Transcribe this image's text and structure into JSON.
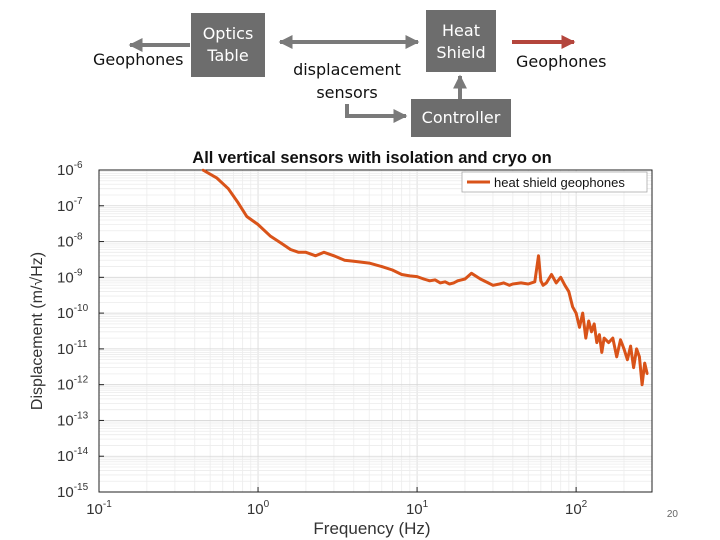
{
  "diagram": {
    "optics_table": [
      "Optics",
      "Table"
    ],
    "geophones_left": "Geophones",
    "displacement_sensors": [
      "displacement",
      "sensors"
    ],
    "heat_shield": [
      "Heat",
      "Shield"
    ],
    "geophones_right": "Geophones",
    "controller": "Controller",
    "colors": {
      "box": "#6d6d6d",
      "arrow_gray": "#7a7a7a",
      "arrow_red": "#b4453c"
    }
  },
  "slide_number": "20",
  "chart_data": {
    "type": "line",
    "title": "All vertical sensors with isolation and cryo on",
    "xlabel": "Frequency (Hz)",
    "ylabel": "Displacement (m/√Hz)",
    "xscale": "log",
    "yscale": "log",
    "xlim": [
      0.1,
      300
    ],
    "ylim": [
      1e-15,
      1e-06
    ],
    "x_ticks": [
      {
        "value": 0.1,
        "base": "10",
        "exp": "-1"
      },
      {
        "value": 1,
        "base": "10",
        "exp": "0"
      },
      {
        "value": 10,
        "base": "10",
        "exp": "1"
      },
      {
        "value": 100,
        "base": "10",
        "exp": "2"
      }
    ],
    "y_ticks": [
      {
        "value": 1e-06,
        "base": "10",
        "exp": "-6"
      },
      {
        "value": 1e-07,
        "base": "10",
        "exp": "-7"
      },
      {
        "value": 1e-08,
        "base": "10",
        "exp": "-8"
      },
      {
        "value": 1e-09,
        "base": "10",
        "exp": "-9"
      },
      {
        "value": 1e-10,
        "base": "10",
        "exp": "-10"
      },
      {
        "value": 1e-11,
        "base": "10",
        "exp": "-11"
      },
      {
        "value": 1e-12,
        "base": "10",
        "exp": "-12"
      },
      {
        "value": 1e-13,
        "base": "10",
        "exp": "-13"
      },
      {
        "value": 1e-14,
        "base": "10",
        "exp": "-14"
      },
      {
        "value": 1e-15,
        "base": "10",
        "exp": "-15"
      }
    ],
    "grid": true,
    "legend_position": "top-right",
    "series": [
      {
        "name": "heat shield geophones",
        "color": "#d95319",
        "x": [
          0.45,
          0.55,
          0.65,
          0.75,
          0.85,
          1.0,
          1.2,
          1.4,
          1.6,
          1.8,
          2.0,
          2.3,
          2.6,
          3.0,
          3.5,
          4.0,
          5.0,
          6.0,
          7.0,
          8.0,
          9.0,
          10.0,
          11,
          12,
          13,
          14,
          15,
          16,
          17,
          18,
          20,
          22,
          25,
          28,
          30,
          33,
          35,
          38,
          40,
          45,
          50,
          55,
          58,
          60,
          62,
          65,
          70,
          75,
          80,
          85,
          90,
          95,
          100,
          105,
          110,
          115,
          120,
          125,
          130,
          135,
          140,
          145,
          150,
          160,
          170,
          180,
          190,
          200,
          210,
          220,
          230,
          240,
          250,
          260,
          270,
          280
        ],
        "y": [
          1e-06,
          6e-07,
          3e-07,
          1.2e-07,
          5e-08,
          3e-08,
          1.4e-08,
          9e-09,
          6e-09,
          5e-09,
          5e-09,
          4e-09,
          5e-09,
          4e-09,
          3e-09,
          2.8e-09,
          2.5e-09,
          2e-09,
          1.6e-09,
          1.2e-09,
          1.1e-09,
          1.05e-09,
          9e-10,
          8e-10,
          8.5e-10,
          7e-10,
          7.5e-10,
          6.5e-10,
          7e-10,
          8e-10,
          9e-10,
          1.3e-09,
          9e-10,
          7e-10,
          6e-10,
          6.5e-10,
          7e-10,
          6e-10,
          6.5e-10,
          7e-10,
          6.5e-10,
          7.5e-10,
          4e-09,
          8e-10,
          6e-10,
          7e-10,
          1.2e-09,
          7e-10,
          1e-09,
          6e-10,
          4e-10,
          1.5e-10,
          1e-10,
          4e-11,
          1e-10,
          2e-11,
          6e-11,
          3e-11,
          5e-11,
          1.5e-11,
          2.5e-11,
          8e-12,
          2e-11,
          1.5e-11,
          2e-11,
          6e-12,
          1.8e-11,
          1e-11,
          5e-12,
          1.2e-11,
          3e-12,
          1e-11,
          6e-12,
          1e-12,
          4e-12,
          2e-12
        ]
      }
    ]
  }
}
